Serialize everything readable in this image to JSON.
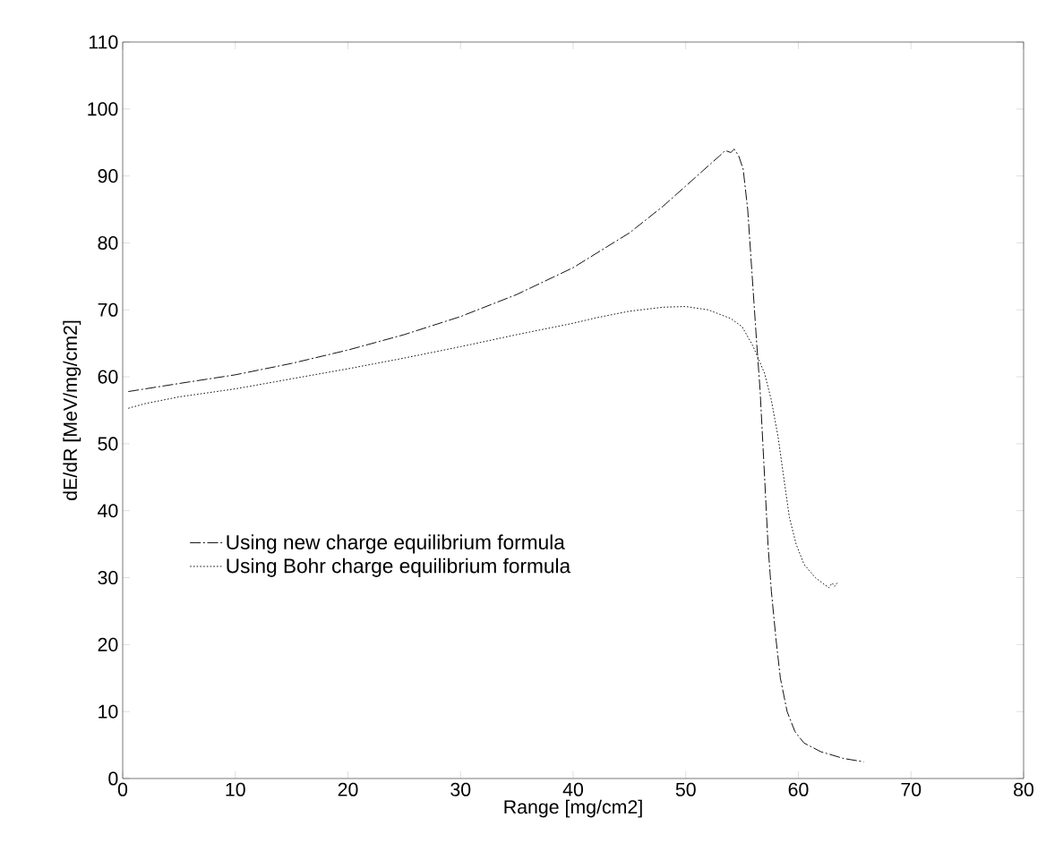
{
  "chart_data": {
    "type": "line",
    "xlabel": "Range [mg/cm2]",
    "ylabel": "dE/dR [MeV/mg/cm2]",
    "xlim": [
      0,
      80
    ],
    "ylim": [
      0,
      110
    ],
    "xticks": [
      0,
      10,
      20,
      30,
      40,
      50,
      60,
      70,
      80
    ],
    "yticks": [
      0,
      10,
      20,
      30,
      40,
      50,
      60,
      70,
      80,
      90,
      100,
      110
    ],
    "grid": false,
    "legend": "bottom left",
    "marker": "none",
    "series": [
      {
        "name": "Using new charge equilibrium formula",
        "color": "#000000",
        "line_style": "dashed",
        "x": [
          0.5,
          5,
          10,
          15,
          20,
          25,
          30,
          35,
          40,
          45,
          48,
          50,
          52,
          53,
          53.5,
          54,
          54.3,
          54.7,
          55.1,
          55.5,
          55.9,
          56.3,
          56.6,
          57,
          57.3,
          57.6,
          58,
          58.4,
          59,
          59.7,
          60.5,
          62,
          64,
          65.8
        ],
        "values": [
          57.8,
          59,
          60.3,
          62,
          64,
          66.3,
          69,
          72.3,
          76.3,
          81.5,
          85.5,
          88.5,
          91.5,
          93,
          93.8,
          93.5,
          94,
          93,
          91,
          85,
          75,
          65,
          58,
          45,
          35,
          28,
          21,
          15,
          10,
          7,
          5.3,
          4,
          3,
          2.5
        ]
      },
      {
        "name": "Using Bohr charge equilibrium formula",
        "color": "#000000",
        "line_style": "dotted",
        "x": [
          0.5,
          2,
          5,
          10,
          15,
          20,
          25,
          30,
          35,
          40,
          42,
          45,
          48,
          50,
          52,
          54,
          55,
          56,
          57,
          57.6,
          58.2,
          58.7,
          59.2,
          59.8,
          60.5,
          61.5,
          62.3,
          62.7,
          63,
          63.2,
          63.5
        ],
        "values": [
          55.3,
          56,
          57,
          58.2,
          59.7,
          61.2,
          62.8,
          64.5,
          66.3,
          68,
          68.8,
          69.8,
          70.4,
          70.5,
          70,
          68.7,
          67.5,
          64.5,
          60.5,
          56.5,
          51,
          45,
          39,
          35,
          32,
          30,
          29,
          28.5,
          29.2,
          28.7,
          29.3
        ]
      }
    ]
  }
}
